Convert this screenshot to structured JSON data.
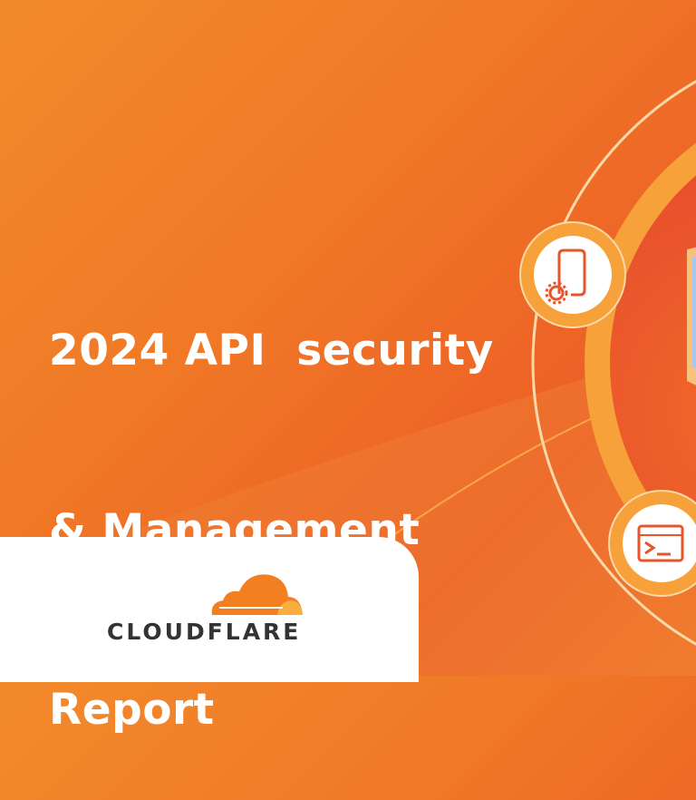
{
  "banner": {
    "title_lines": [
      "2024 API  security",
      "& Management",
      "Report"
    ],
    "brand": "CLOUDFLARE",
    "icons": [
      "mobile-settings-icon",
      "terminal-window-icon",
      "shield-icon"
    ],
    "colors": {
      "background": "#f07826",
      "ring": "#f6a13a",
      "disk": "#e8552a",
      "brand_orange": "#f38020",
      "brand_text": "#333333"
    }
  }
}
